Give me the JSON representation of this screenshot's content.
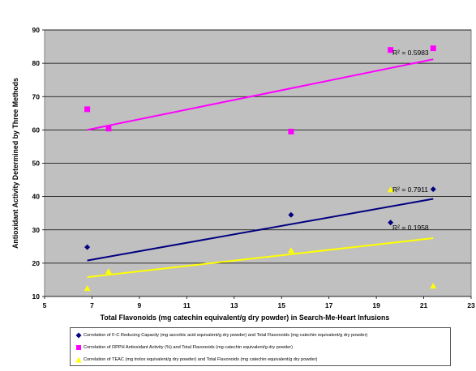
{
  "chart_data": {
    "type": "scatter",
    "xlabel": "Total Flavonoids  (mg catechin equivalent/g dry powder) in Search-Me-Heart Infusions",
    "ylabel": "Antioxidant Activity Determined by Three Methods",
    "xlim": [
      5,
      23
    ],
    "ylim": [
      10,
      90
    ],
    "xticks": [
      5,
      7,
      9,
      11,
      13,
      15,
      17,
      19,
      21,
      23
    ],
    "yticks": [
      10,
      20,
      30,
      40,
      50,
      60,
      70,
      80,
      90
    ],
    "grid": "horizontal",
    "plot_background": "#c0c0c0",
    "legend_position": "bottom",
    "series": [
      {
        "name": "Correlation of F-C Reducing Capacity  (mg ascorbic acid equivalent/g dry powder) and Total Flavonoids (mg catechin equivalent/g dry powder)",
        "marker": "diamond",
        "color": "#000080",
        "x": [
          6.8,
          15.4,
          19.6,
          21.4
        ],
        "y": [
          24.8,
          34.5,
          32.2,
          42.2
        ],
        "trendline": {
          "x": [
            6.8,
            21.4
          ],
          "y": [
            20.8,
            39.3
          ],
          "color": "#000080"
        },
        "r2_label": "R² = 0.7911"
      },
      {
        "name": "Correlation of DPPH Antioxidant Activity (%) and Total Flavonoids (mg catechin equivalent/g dry powder)",
        "marker": "square",
        "color": "#ff00ff",
        "x": [
          6.8,
          7.7,
          15.4,
          19.6,
          21.4
        ],
        "y": [
          66.2,
          60.4,
          59.5,
          84.0,
          84.5
        ],
        "trendline": {
          "x": [
            6.8,
            21.4
          ],
          "y": [
            60.0,
            81.2
          ],
          "color": "#ff00ff"
        },
        "r2_label": "R² = 0.5983"
      },
      {
        "name": "Correlation of TEAC (mg trolox equivalent/g dry powder) and Total Flavonoids (mg catechin equivalent/g dry powder)",
        "marker": "triangle",
        "color": "#ffff00",
        "x": [
          6.8,
          7.7,
          15.4,
          19.6,
          21.4
        ],
        "y": [
          12.4,
          17.5,
          23.8,
          42.0,
          13.1
        ],
        "trendline": {
          "x": [
            6.8,
            21.4
          ],
          "y": [
            15.8,
            27.5
          ],
          "color": "#ffff00"
        },
        "r2_label": "R² = 0.1958"
      }
    ]
  }
}
